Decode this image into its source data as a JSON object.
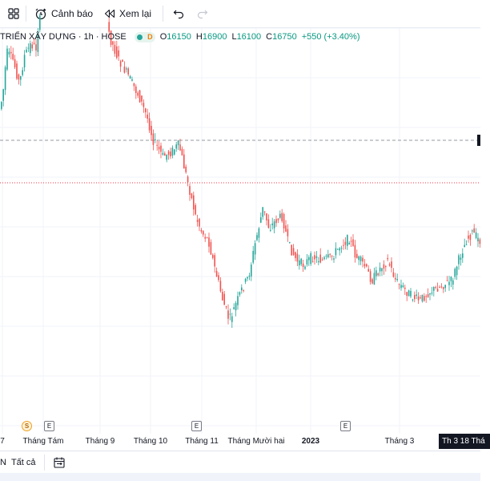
{
  "toolbar": {
    "alert_label": "Cảnh báo",
    "replay_label": "Xem lại"
  },
  "legend": {
    "symbol": "TRIỂN XÂY DỰNG · 1h · HOSE",
    "badge_letter": "D",
    "open_key": "O",
    "open": "16150",
    "high_key": "H",
    "high": "16900",
    "low_key": "L",
    "low": "16100",
    "close_key": "C",
    "close": "16750",
    "change": "+550 (+3.40%)"
  },
  "time_axis": {
    "labels": [
      "7",
      "Tháng Tám",
      "Tháng 9",
      "Tháng 10",
      "Tháng 11",
      "Tháng Mười hai",
      "2023",
      "Tháng 3"
    ],
    "crosshair": "Th 3 18 Thá"
  },
  "events": [
    "S",
    "E",
    "E",
    "E"
  ],
  "bottombar": {
    "left_fragment": "N",
    "all_label": "Tất cả"
  },
  "colors": {
    "up": "#26a69a",
    "down": "#ef5350",
    "grid": "#f0f3fa",
    "price_line": "#f23645"
  }
}
